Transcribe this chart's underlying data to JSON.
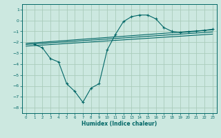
{
  "bg_color": "#cce8e0",
  "grid_color": "#aaccbb",
  "line_color": "#006666",
  "xlabel": "Humidex (Indice chaleur)",
  "xlim": [
    -0.5,
    23.5
  ],
  "ylim": [
    -8.5,
    1.5
  ],
  "xticks": [
    0,
    1,
    2,
    3,
    4,
    5,
    6,
    7,
    8,
    9,
    10,
    11,
    12,
    13,
    14,
    15,
    16,
    17,
    18,
    19,
    20,
    21,
    22,
    23
  ],
  "yticks": [
    1,
    0,
    -1,
    -2,
    -3,
    -4,
    -5,
    -6,
    -7,
    -8
  ],
  "curve1_x": [
    1,
    2,
    3,
    4,
    5,
    6,
    7,
    8,
    9,
    10,
    11,
    12,
    13,
    14,
    15,
    16,
    17,
    18,
    19,
    20,
    21,
    22,
    23
  ],
  "curve1_y": [
    -2.2,
    -2.5,
    -3.5,
    -3.8,
    -5.8,
    -6.5,
    -7.5,
    -6.2,
    -5.8,
    -2.7,
    -1.3,
    -0.1,
    0.35,
    0.5,
    0.5,
    0.15,
    -0.65,
    -1.0,
    -1.1,
    -1.05,
    -1.0,
    -0.9,
    -0.8
  ],
  "curve2_x": [
    0,
    23
  ],
  "curve2_y": [
    -2.1,
    -0.85
  ],
  "curve3_x": [
    0,
    23
  ],
  "curve3_y": [
    -2.2,
    -1.05
  ],
  "curve4_x": [
    0,
    23
  ],
  "curve4_y": [
    -2.35,
    -1.25
  ]
}
